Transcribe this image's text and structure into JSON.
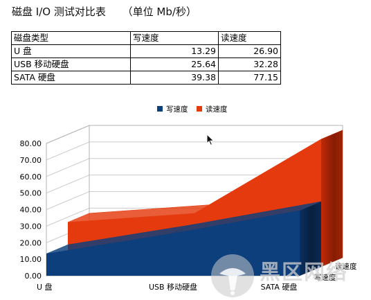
{
  "page": {
    "title": "磁盘 I/O 测试对比表     （单位 Mb/秒）"
  },
  "table": {
    "headers": [
      "磁盘类型",
      "写速度",
      "读速度"
    ],
    "rows": [
      [
        "U 盘",
        "13.29",
        "26.90"
      ],
      [
        "USB 移动硬盘",
        "25.64",
        "32.28"
      ],
      [
        "SATA 硬盘",
        "39.38",
        "77.15"
      ]
    ]
  },
  "chart_data": {
    "type": "area",
    "style": "3d-stacked",
    "categories": [
      "U 盘",
      "USB 移动硬盘",
      "SATA 硬盘"
    ],
    "series": [
      {
        "name": "写速度",
        "values": [
          13.29,
          25.64,
          39.38
        ],
        "color": "#0c3f7c"
      },
      {
        "name": "读速度",
        "values": [
          26.9,
          32.28,
          77.15
        ],
        "color": "#e43a0e"
      }
    ],
    "yticks": [
      "0.00",
      "10.00",
      "20.00",
      "30.00",
      "40.00",
      "50.00",
      "60.00",
      "70.00",
      "80.00"
    ],
    "ylim": [
      0,
      80
    ],
    "depth_labels": [
      "读速度",
      "写速度"
    ],
    "legend": "top-center",
    "grid": true
  },
  "watermark": {
    "text": "黑区网络"
  },
  "icons": [
    "mouse-cursor-icon",
    "watermark-logo-icon"
  ]
}
